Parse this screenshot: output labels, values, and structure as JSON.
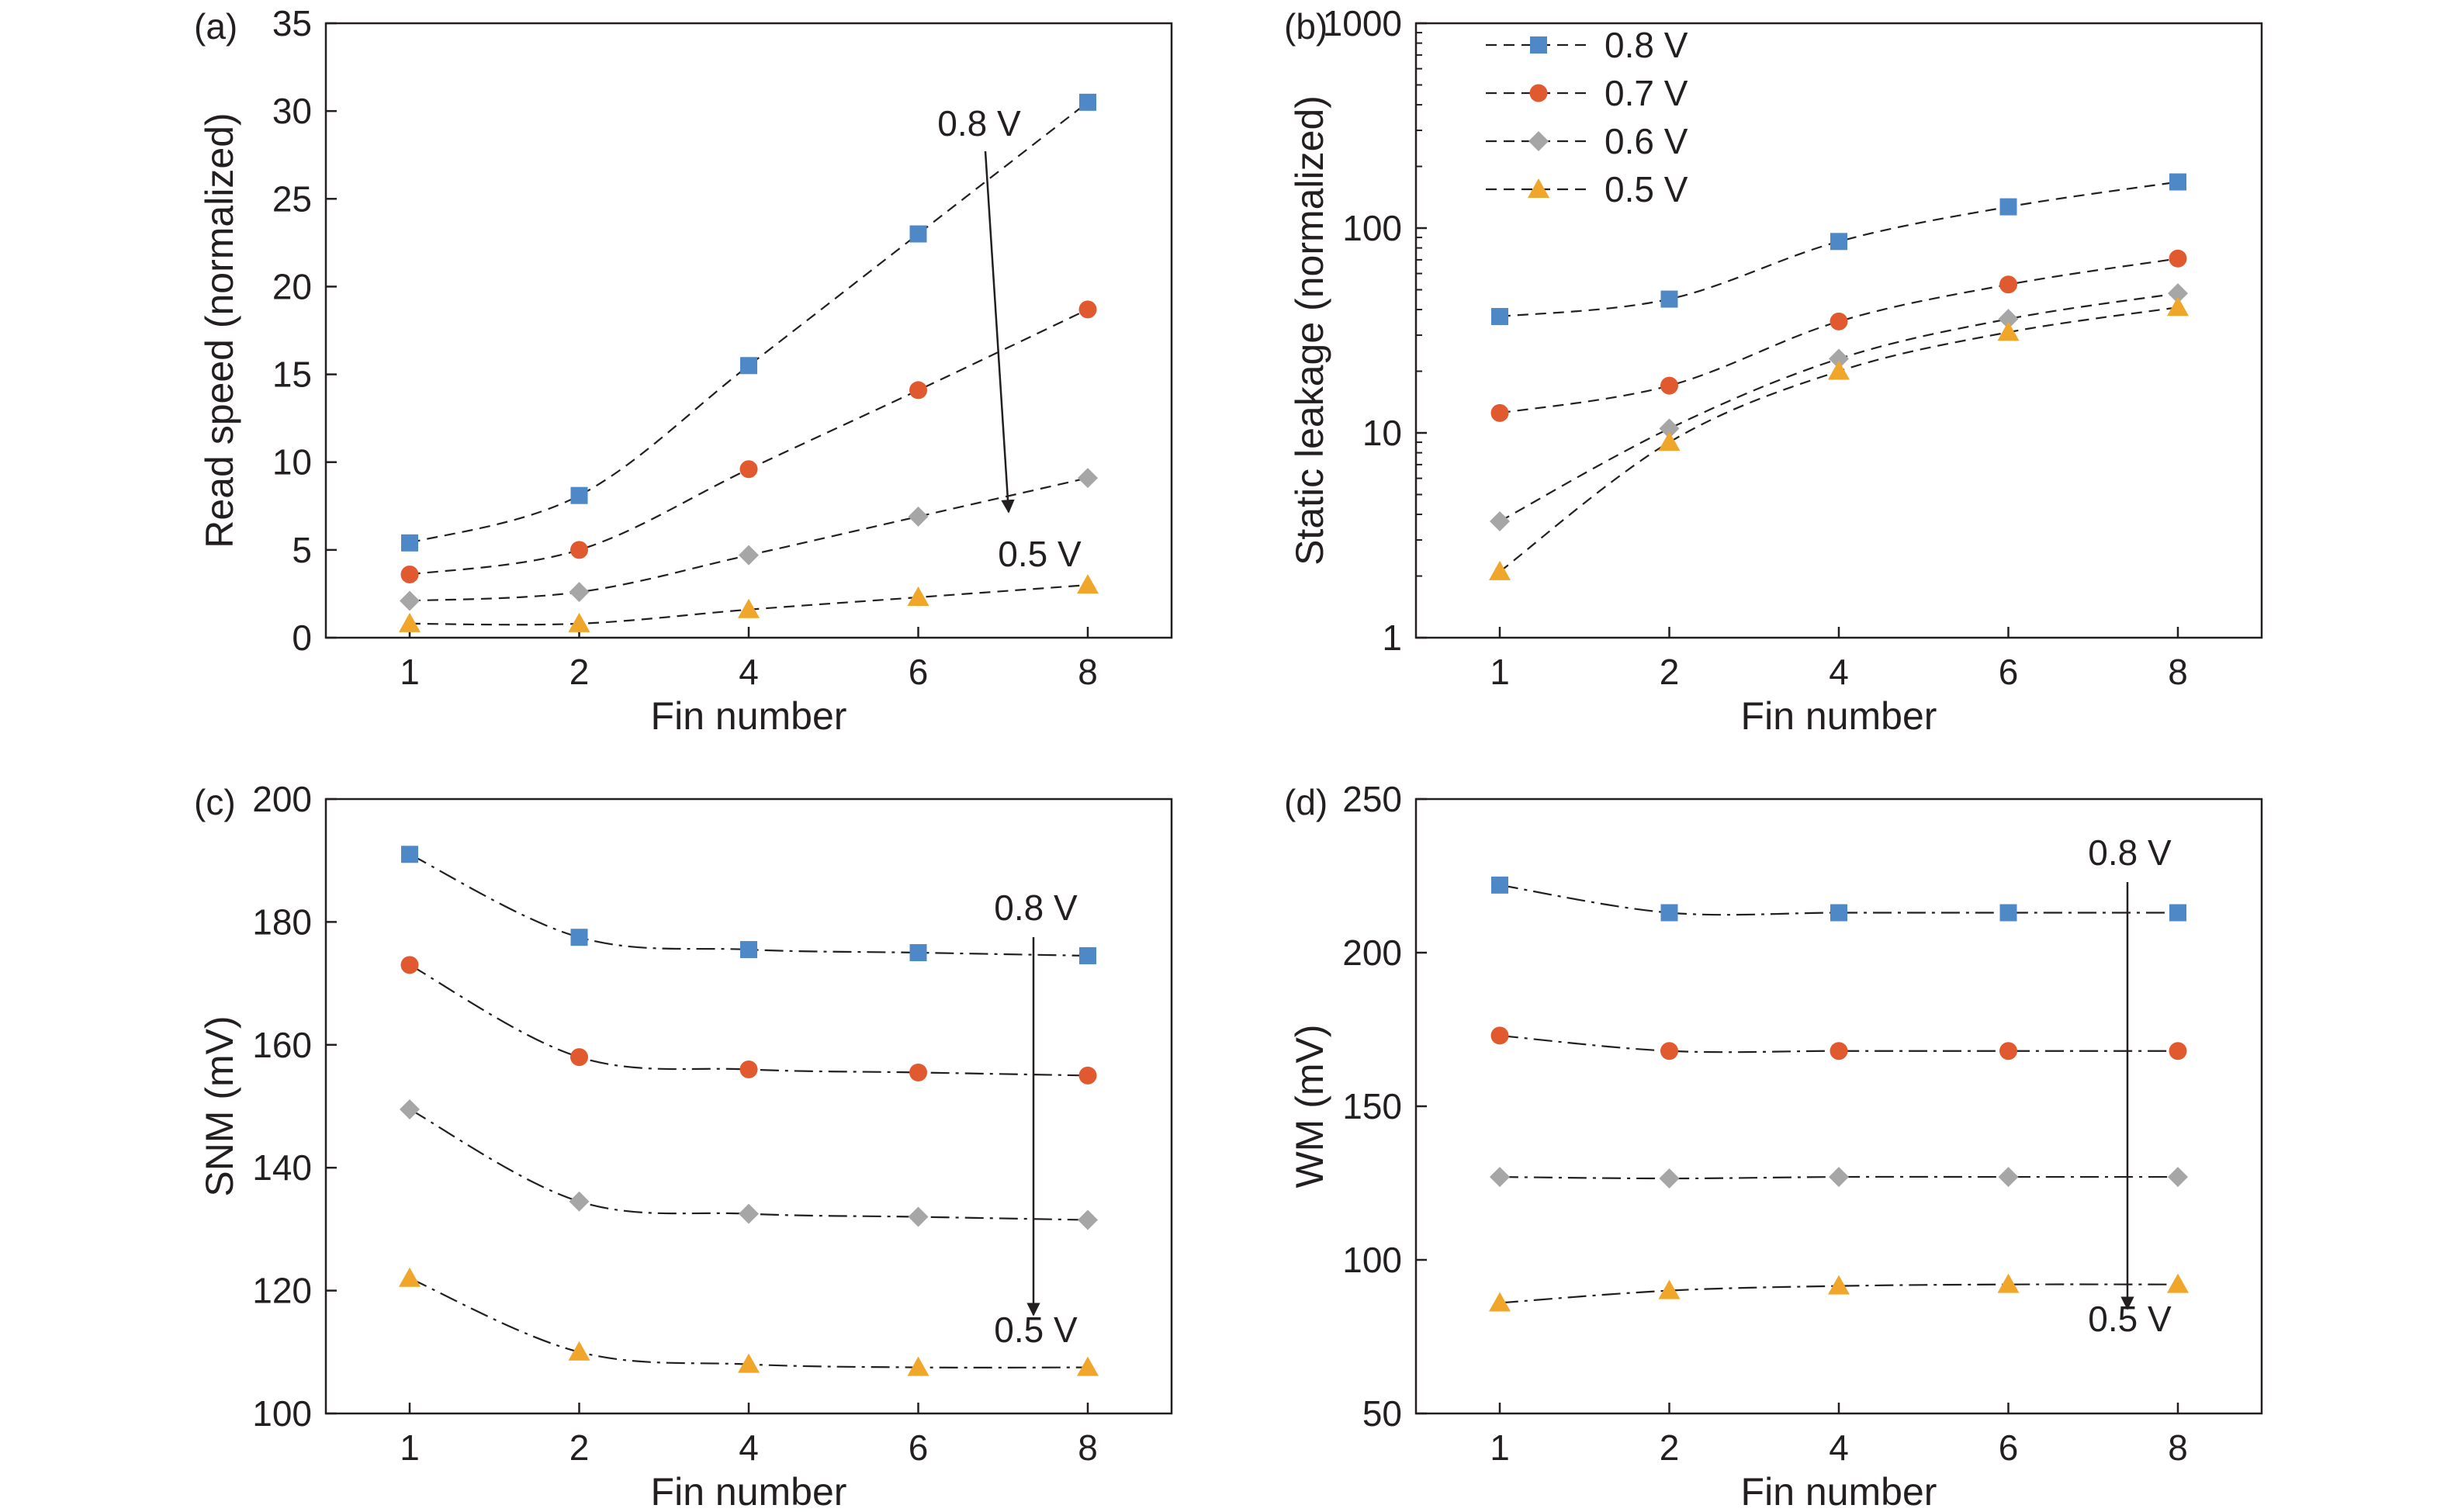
{
  "colors": {
    "v08": "#4f88c6",
    "v07": "#e1592f",
    "v06": "#a6a6a6",
    "v05": "#f0a62a",
    "ink": "#231f20"
  },
  "legend": [
    "0.8 V",
    "0.7 V",
    "0.6 V",
    "0.5 V"
  ],
  "chart_data": [
    {
      "id": "a",
      "panel_label": "(a)",
      "type": "line",
      "xlabel": "Fin number",
      "ylabel": "Read speed (normalized)",
      "categories": [
        "1",
        "2",
        "4",
        "6",
        "8"
      ],
      "ylim": [
        0,
        35
      ],
      "yscale": "linear",
      "yticks": [
        0,
        5,
        10,
        15,
        20,
        25,
        30,
        35
      ],
      "ytick_labels": [
        "0",
        "5",
        "10",
        "15",
        "20",
        "25",
        "30",
        "35"
      ],
      "line_style": "dashed",
      "series": [
        {
          "color_key": "v08",
          "marker": "square",
          "values": [
            5.4,
            8.1,
            15.5,
            23.0,
            30.5
          ]
        },
        {
          "color_key": "v07",
          "marker": "circle",
          "values": [
            3.6,
            5.0,
            9.6,
            14.1,
            18.7
          ]
        },
        {
          "color_key": "v06",
          "marker": "diamond",
          "values": [
            2.1,
            2.6,
            4.7,
            6.9,
            9.1
          ]
        },
        {
          "color_key": "v05",
          "marker": "triangle",
          "values": [
            0.8,
            0.8,
            1.6,
            2.3,
            3.0
          ]
        }
      ],
      "annotations": [
        {
          "text": "0.8 V",
          "role": "top"
        },
        {
          "text": "0.5 V",
          "role": "bottom"
        }
      ]
    },
    {
      "id": "b",
      "panel_label": "(b)",
      "type": "line",
      "xlabel": "Fin number",
      "ylabel": "Static leakage (normalized)",
      "categories": [
        "1",
        "2",
        "4",
        "6",
        "8"
      ],
      "ylim": [
        1,
        1000
      ],
      "yscale": "log",
      "yticks": [
        1,
        10,
        100,
        1000
      ],
      "ytick_labels": [
        "1",
        "10",
        "100",
        "1000"
      ],
      "line_style": "dashed",
      "legend_position": "top-left",
      "series": [
        {
          "name": "0.8 V",
          "color_key": "v08",
          "marker": "square",
          "values": [
            37,
            45,
            86,
            127,
            168
          ]
        },
        {
          "name": "0.7 V",
          "color_key": "v07",
          "marker": "circle",
          "values": [
            12.5,
            17,
            35,
            53,
            71
          ]
        },
        {
          "name": "0.6 V",
          "color_key": "v06",
          "marker": "diamond",
          "values": [
            3.7,
            10.5,
            23,
            36,
            48
          ]
        },
        {
          "name": "0.5 V",
          "color_key": "v05",
          "marker": "triangle",
          "values": [
            2.1,
            9.0,
            20,
            31,
            41
          ]
        }
      ],
      "annotations": []
    },
    {
      "id": "c",
      "panel_label": "(c)",
      "type": "line",
      "xlabel": "Fin number",
      "ylabel": "SNM (mV)",
      "categories": [
        "1",
        "2",
        "4",
        "6",
        "8"
      ],
      "ylim": [
        100,
        200
      ],
      "yscale": "linear",
      "yticks": [
        100,
        120,
        140,
        160,
        180,
        200
      ],
      "ytick_labels": [
        "100",
        "120",
        "140",
        "160",
        "180",
        "200"
      ],
      "line_style": "dashdot",
      "series": [
        {
          "color_key": "v08",
          "marker": "square",
          "values": [
            191,
            177.5,
            175.5,
            175,
            174.5
          ]
        },
        {
          "color_key": "v07",
          "marker": "circle",
          "values": [
            173,
            158,
            156,
            155.5,
            155
          ]
        },
        {
          "color_key": "v06",
          "marker": "diamond",
          "values": [
            149.5,
            134.5,
            132.5,
            132,
            131.5
          ]
        },
        {
          "color_key": "v05",
          "marker": "triangle",
          "values": [
            122,
            110,
            108,
            107.5,
            107.5
          ]
        }
      ],
      "annotations": [
        {
          "text": "0.8 V",
          "role": "top"
        },
        {
          "text": "0.5 V",
          "role": "bottom"
        }
      ]
    },
    {
      "id": "d",
      "panel_label": "(d)",
      "type": "line",
      "xlabel": "Fin number",
      "ylabel": "WM (mV)",
      "categories": [
        "1",
        "2",
        "4",
        "6",
        "8"
      ],
      "ylim": [
        50,
        250
      ],
      "yscale": "linear",
      "yticks": [
        50,
        100,
        150,
        200,
        250
      ],
      "ytick_labels": [
        "50",
        "100",
        "150",
        "200",
        "250"
      ],
      "line_style": "dashdot",
      "series": [
        {
          "color_key": "v08",
          "marker": "square",
          "values": [
            222,
            213,
            213,
            213,
            213
          ]
        },
        {
          "color_key": "v07",
          "marker": "circle",
          "values": [
            173,
            168,
            168,
            168,
            168
          ]
        },
        {
          "color_key": "v06",
          "marker": "diamond",
          "values": [
            127,
            126.5,
            127,
            127,
            127
          ]
        },
        {
          "color_key": "v05",
          "marker": "triangle",
          "values": [
            86,
            90,
            91.5,
            92,
            92
          ]
        }
      ],
      "annotations": [
        {
          "text": "0.8 V",
          "role": "top"
        },
        {
          "text": "0.5 V",
          "role": "bottom"
        }
      ]
    }
  ]
}
